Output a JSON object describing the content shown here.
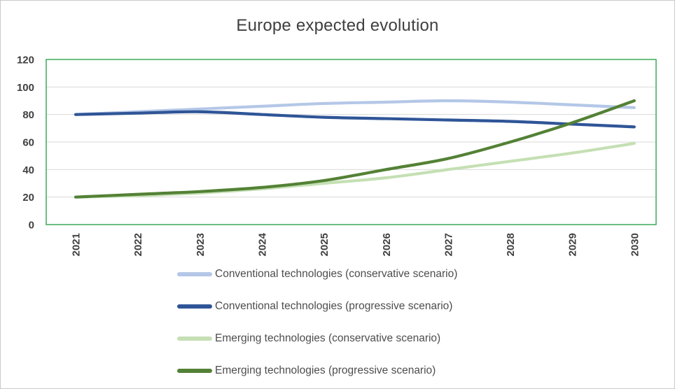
{
  "title": "Europe expected evolution",
  "chart_data": {
    "type": "line",
    "title": "Europe expected evolution",
    "x": [
      "2021",
      "2022",
      "2023",
      "2024",
      "2025",
      "2026",
      "2027",
      "2028",
      "2029",
      "2030"
    ],
    "series": [
      {
        "name": "Conventional technologies (conservative scenario)",
        "color": "#b4c7e7",
        "values": [
          80,
          82,
          84,
          86,
          88,
          89,
          90,
          89,
          87,
          85
        ]
      },
      {
        "name": "Conventional technologies (progressive scenario)",
        "color": "#2f5597",
        "values": [
          80,
          81,
          82,
          80,
          78,
          77,
          76,
          75,
          73,
          71
        ]
      },
      {
        "name": "Emerging technologies (conservative scenario)",
        "color": "#c5e0b4",
        "values": [
          20,
          21,
          23,
          26,
          30,
          34,
          40,
          46,
          52,
          59
        ]
      },
      {
        "name": "Emerging technologies (progressive scenario)",
        "color": "#538135",
        "values": [
          20,
          22,
          24,
          27,
          32,
          40,
          48,
          60,
          74,
          90
        ]
      }
    ],
    "ylim": [
      0,
      120
    ],
    "yticks": [
      0,
      20,
      40,
      60,
      80,
      100,
      120
    ],
    "grid": true,
    "legend_position": "bottom",
    "plot_border_color": "#2da44e",
    "gridline_color": "#d9d9d9",
    "tick_label_color": "#404040"
  }
}
